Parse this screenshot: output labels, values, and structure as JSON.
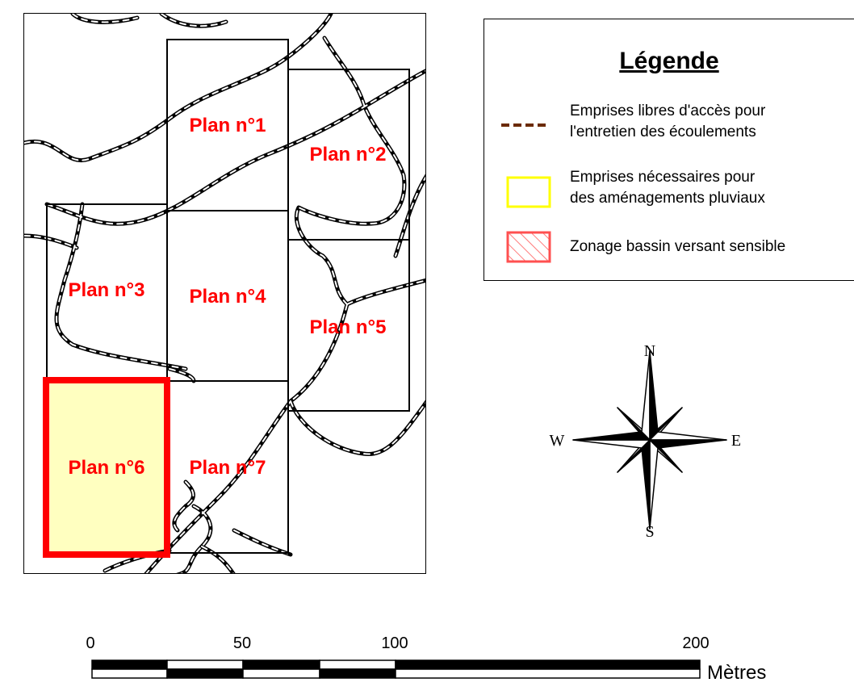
{
  "legend": {
    "title": "Légende",
    "items": [
      {
        "line1": "Emprises libres d'accès pour",
        "line2": "l'entretien des écoulements",
        "swatch": "dashed-line-icon",
        "color": "#6b2a00"
      },
      {
        "line1": "Emprises nécessaires pour",
        "line2": "des aménagements pluviaux",
        "swatch": "yellow-box-icon",
        "color": "#ffff00"
      },
      {
        "line1": "Zonage bassin versant sensible",
        "line2": "",
        "swatch": "hatched-box-icon",
        "color": "#ff5050"
      }
    ]
  },
  "plans": [
    {
      "label": "Plan n°1"
    },
    {
      "label": "Plan n°2"
    },
    {
      "label": "Plan n°3"
    },
    {
      "label": "Plan n°4"
    },
    {
      "label": "Plan n°5"
    },
    {
      "label": "Plan n°6",
      "highlighted": true
    },
    {
      "label": "Plan n°7"
    }
  ],
  "compass": {
    "north": "N",
    "south": "S",
    "east": "E",
    "west": "W"
  },
  "scale": {
    "ticks": [
      "0",
      "50",
      "100",
      "200"
    ],
    "unit": "Mètres"
  },
  "colors": {
    "plan_label": "#ff0000",
    "highlight_fill": "#ffffc0",
    "highlight_border": "#ff0000"
  }
}
